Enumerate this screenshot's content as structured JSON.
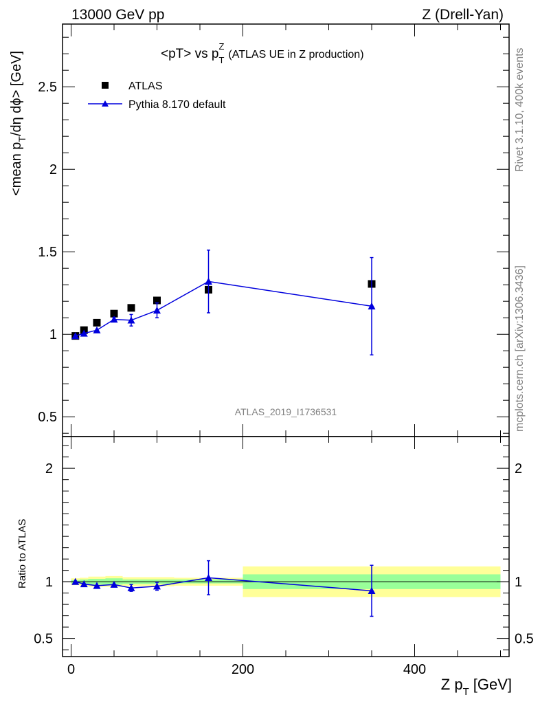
{
  "header": {
    "left": "13000 GeV pp",
    "right": "Z (Drell-Yan)"
  },
  "side_labels": {
    "rivet": "Rivet 3.1.10,  400k events",
    "mcplots": "mcplots.cern.ch [arXiv:1306.3436]"
  },
  "chart_data": [
    {
      "type": "scatter",
      "title": "<pT> vs p_T^Z (ATLAS UE in Z production)",
      "title_main": "<pT> vs p",
      "title_sup": "Z",
      "title_sub": "T",
      "title_rest": "(ATLAS UE in Z production)",
      "analysis_tag": "ATLAS_2019_I1736531",
      "ylabel": "<mean p_T/dη dϕ> [GeV]",
      "ylabel_a": "<mean p",
      "ylabel_sub": "T",
      "ylabel_b": "/dη dϕ> [GeV]",
      "xlim": [
        -10,
        510
      ],
      "ylim": [
        0.38,
        2.88
      ],
      "yticks": [
        0.5,
        1,
        1.5,
        2,
        2.5
      ],
      "ytick_labels": [
        "0.5",
        "1",
        "1.5",
        "2",
        "2.5"
      ],
      "legend_position": "top-left",
      "series": [
        {
          "name": "ATLAS",
          "marker": "square",
          "color": "#000000",
          "x": [
            5,
            15,
            30,
            50,
            70,
            100,
            160,
            350
          ],
          "y": [
            0.99,
            1.025,
            1.07,
            1.125,
            1.16,
            1.205,
            1.27,
            1.305
          ]
        },
        {
          "name": "Pythia 8.170 default",
          "marker": "triangle",
          "color": "#0000dd",
          "x": [
            5,
            15,
            30,
            50,
            70,
            100,
            160,
            350
          ],
          "y": [
            0.99,
            1.005,
            1.025,
            1.09,
            1.085,
            1.145,
            1.32,
            1.17
          ],
          "yerr": [
            0.005,
            0.006,
            0.008,
            0.012,
            0.035,
            0.045,
            0.19,
            0.295
          ]
        }
      ]
    },
    {
      "type": "line",
      "ylabel": "Ratio to ATLAS",
      "xlabel": "Z p_T [GeV]",
      "xlabel_a": "Z p",
      "xlabel_sub": "T",
      "xlabel_b": "[GeV]",
      "xlim": [
        -10,
        510
      ],
      "ylim": [
        0.34,
        2.28
      ],
      "xticks": [
        0,
        200,
        400
      ],
      "xtick_labels": [
        "0",
        "200",
        "400"
      ],
      "yticks": [
        0.5,
        1,
        2
      ],
      "ytick_labels": [
        "0.5",
        "1",
        "2"
      ],
      "bands": [
        {
          "x0": 0,
          "x1": 10,
          "g": [
            0.985,
            1.015
          ],
          "y": [
            0.97,
            1.03
          ]
        },
        {
          "x0": 10,
          "x1": 20,
          "g": [
            0.98,
            1.02
          ],
          "y": [
            0.965,
            1.035
          ]
        },
        {
          "x0": 20,
          "x1": 40,
          "g": [
            0.975,
            1.025
          ],
          "y": [
            0.955,
            1.045
          ]
        },
        {
          "x0": 40,
          "x1": 60,
          "g": [
            0.975,
            1.03
          ],
          "y": [
            0.955,
            1.05
          ]
        },
        {
          "x0": 60,
          "x1": 80,
          "g": [
            0.98,
            1.02
          ],
          "y": [
            0.96,
            1.04
          ]
        },
        {
          "x0": 80,
          "x1": 120,
          "g": [
            0.98,
            1.02
          ],
          "y": [
            0.96,
            1.04
          ]
        },
        {
          "x0": 120,
          "x1": 200,
          "g": [
            0.985,
            1.02
          ],
          "y": [
            0.965,
            1.035
          ]
        },
        {
          "x0": 200,
          "x1": 500,
          "g": [
            0.935,
            1.065
          ],
          "y": [
            0.865,
            1.135
          ]
        }
      ],
      "series": [
        {
          "name": "Pythia 8.170 default",
          "color": "#0000dd",
          "x": [
            5,
            15,
            30,
            50,
            70,
            100,
            160,
            350
          ],
          "y": [
            1.0,
            0.98,
            0.965,
            0.975,
            0.945,
            0.96,
            1.035,
            0.92
          ],
          "yerr": [
            0.005,
            0.006,
            0.008,
            0.01,
            0.03,
            0.035,
            0.15,
            0.225
          ]
        }
      ]
    }
  ]
}
